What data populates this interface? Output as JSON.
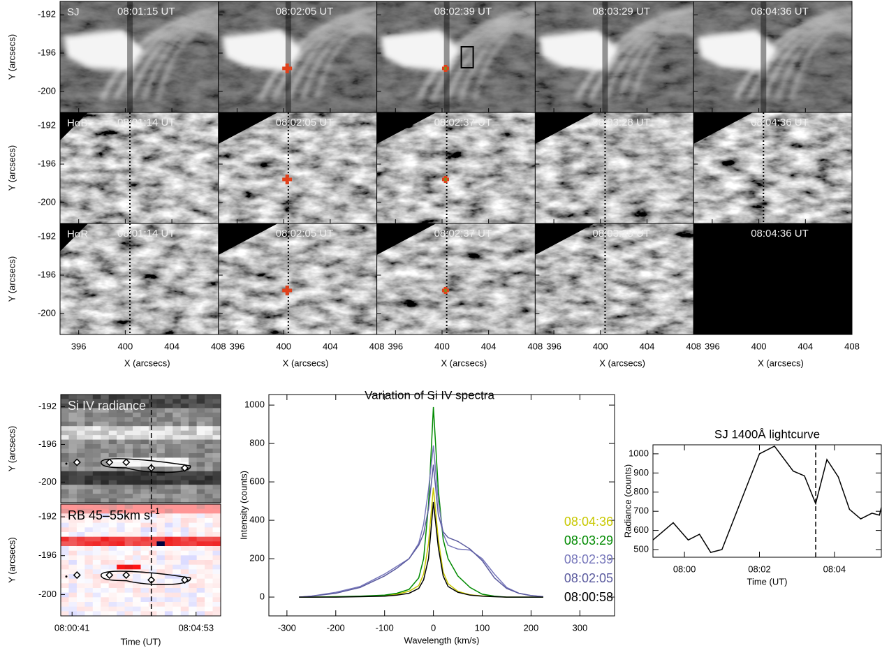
{
  "chart_data": [
    {
      "type": "image-grid",
      "ylabel": "Y (arcsecs)",
      "xlabel": "X (arcsecs)",
      "rows": [
        {
          "label": "SJ",
          "times": [
            "08:01:15 UT",
            "08:02:05 UT",
            "08:02:39 UT",
            "08:03:29 UT",
            "08:04:36 UT"
          ]
        },
        {
          "label": "HαB",
          "times": [
            "08:01:14 UT",
            "08:02:05 UT",
            "08:02:37 UT",
            "08:03:28 UT",
            "08:04:36 UT"
          ]
        },
        {
          "label": "HαR",
          "times": [
            "08:01:14 UT",
            "08:02:05 UT",
            "08:02:37 UT",
            "08:03:28 UT",
            "08:04:36 UT"
          ]
        }
      ],
      "xlim": [
        394.4,
        408
      ],
      "ylim": [
        -202.2,
        -190.6
      ],
      "xticks": [
        396,
        400,
        404,
        408
      ],
      "yticks": [
        -192,
        -196,
        -200
      ],
      "slit_x": 400.4,
      "marker": {
        "x": 400.3,
        "y": -197.6
      }
    },
    {
      "type": "image",
      "title": "Si IV radiance",
      "ylabel": "Y (arcsecs)",
      "xlim": [
        18,
        343
      ],
      "ylim": [
        -202.2,
        -190.7
      ],
      "yticks": [
        -192,
        -196,
        -200
      ],
      "vline": 202,
      "points": {
        "x": [
          51,
          117,
          151,
          202,
          270
        ],
        "y": [
          -197.9,
          -197.9,
          -197.9,
          -198.5,
          -198.5
        ]
      }
    },
    {
      "type": "image",
      "title": "RB 45–55km s",
      "title_sup": "−1",
      "ylabel": "Y (arcsecs)",
      "xlabel": "Time (UT)",
      "xlim": [
        18,
        343
      ],
      "ylim": [
        -202.2,
        -190.7
      ],
      "yticks": [
        -192,
        -196,
        -200
      ],
      "xticks": [
        {
          "value": 41,
          "label": "08:00:41"
        },
        {
          "value": 293,
          "label": "08:04:53"
        }
      ],
      "vline": 202,
      "points": {
        "x": [
          51,
          117,
          151,
          202,
          270
        ],
        "y": [
          -198.0,
          -198.0,
          -198.0,
          -198.5,
          -198.5
        ]
      }
    },
    {
      "type": "line",
      "title": "Variation of Si IV spectra",
      "xlabel": "Wavelength (km/s)",
      "ylabel": "Intensity (counts)",
      "xlim": [
        -337,
        371
      ],
      "ylim": [
        -98,
        1055
      ],
      "xticks": [
        -300,
        -200,
        -100,
        0,
        100,
        200,
        300
      ],
      "yticks": [
        0,
        200,
        400,
        600,
        800,
        1000
      ],
      "x": [
        -275,
        -250,
        -200,
        -150,
        -100,
        -75,
        -50,
        -30,
        -20,
        -10,
        0,
        10,
        20,
        30,
        50,
        75,
        100,
        125,
        150,
        175,
        200,
        225
      ],
      "series": [
        {
          "name": "08:04:36",
          "color": "#c8c800",
          "values": [
            0,
            0,
            2,
            4,
            8,
            15,
            30,
            60,
            120,
            280,
            570,
            300,
            130,
            70,
            30,
            12,
            6,
            3,
            0,
            0,
            0,
            0
          ]
        },
        {
          "name": "08:03:29",
          "color": "#008a00",
          "values": [
            0,
            0,
            2,
            5,
            10,
            20,
            40,
            100,
            200,
            480,
            990,
            560,
            300,
            200,
            110,
            50,
            15,
            5,
            0,
            0,
            0,
            0
          ]
        },
        {
          "name": "08:02:39",
          "color": "#7777bb",
          "values": [
            0,
            5,
            25,
            55,
            120,
            160,
            200,
            280,
            380,
            560,
            790,
            500,
            330,
            270,
            250,
            245,
            200,
            120,
            50,
            20,
            8,
            2
          ]
        },
        {
          "name": "08:02:05",
          "color": "#5a5a9e",
          "values": [
            0,
            5,
            20,
            50,
            110,
            150,
            200,
            270,
            330,
            460,
            690,
            430,
            340,
            310,
            290,
            250,
            190,
            100,
            45,
            20,
            8,
            2
          ]
        },
        {
          "name": "08:00:58",
          "color": "#000000",
          "values": [
            0,
            0,
            0,
            2,
            5,
            10,
            20,
            45,
            90,
            200,
            495,
            260,
            110,
            55,
            25,
            10,
            5,
            2,
            0,
            0,
            0,
            0
          ]
        }
      ]
    },
    {
      "type": "line",
      "title": "SJ 1400Å lightcurve",
      "xlabel": "Time (UT)",
      "ylabel": "Radiance (counts)",
      "xlim": [
        -0.84,
        5.25
      ],
      "ylim": [
        460,
        1047
      ],
      "yticks": [
        500,
        600,
        700,
        800,
        900,
        1000
      ],
      "xticks": [
        {
          "value": 0,
          "label": "08:00"
        },
        {
          "value": 2,
          "label": "08:02"
        },
        {
          "value": 4,
          "label": "08:04"
        }
      ],
      "vline": 3.5,
      "x": [
        -0.84,
        -0.3,
        0.1,
        0.4,
        0.7,
        1.0,
        1.5,
        2.0,
        2.4,
        2.9,
        3.2,
        3.5,
        3.8,
        4.1,
        4.4,
        4.7,
        5.0,
        5.2,
        5.25
      ],
      "series": [
        {
          "color": "#000000",
          "values": [
            550,
            640,
            550,
            580,
            485,
            500,
            750,
            1000,
            1040,
            910,
            885,
            740,
            970,
            880,
            710,
            660,
            690,
            680,
            720
          ]
        }
      ]
    }
  ]
}
